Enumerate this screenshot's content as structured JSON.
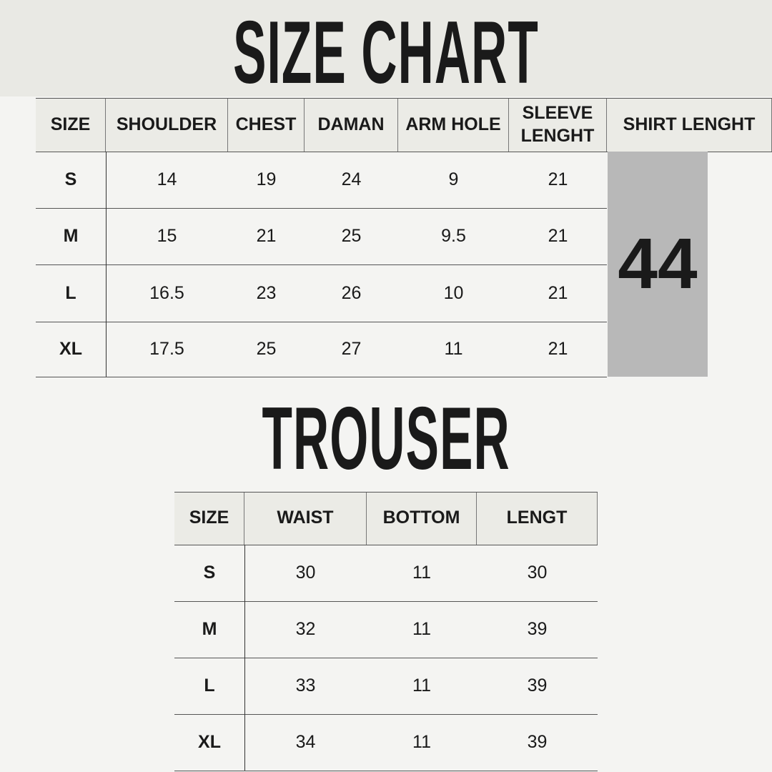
{
  "title": "SIZE CHART",
  "shirt": {
    "headers": [
      "SIZE",
      "SHOULDER",
      "CHEST",
      "DAMAN",
      "ARM HOLE",
      "SLEEVE LENGHT",
      "SHIRT LENGHT"
    ],
    "rows": [
      [
        "S",
        "14",
        "19",
        "24",
        "9",
        "21"
      ],
      [
        "M",
        "15",
        "21",
        "25",
        "9.5",
        "21"
      ],
      [
        "L",
        "16.5",
        "23",
        "26",
        "10",
        "21"
      ],
      [
        "XL",
        "17.5",
        "25",
        "27",
        "11",
        "21"
      ]
    ],
    "shirt_length": "44",
    "highlight_color": "#b8b8b8"
  },
  "trouser": {
    "title": "TROUSER",
    "headers": [
      "SIZE",
      "WAIST",
      "BOTTOM",
      "LENGT"
    ],
    "rows": [
      [
        "S",
        "30",
        "11",
        "30"
      ],
      [
        "M",
        "32",
        "11",
        "39"
      ],
      [
        "L",
        "33",
        "11",
        "39"
      ],
      [
        "XL",
        "34",
        "11",
        "39"
      ]
    ]
  }
}
